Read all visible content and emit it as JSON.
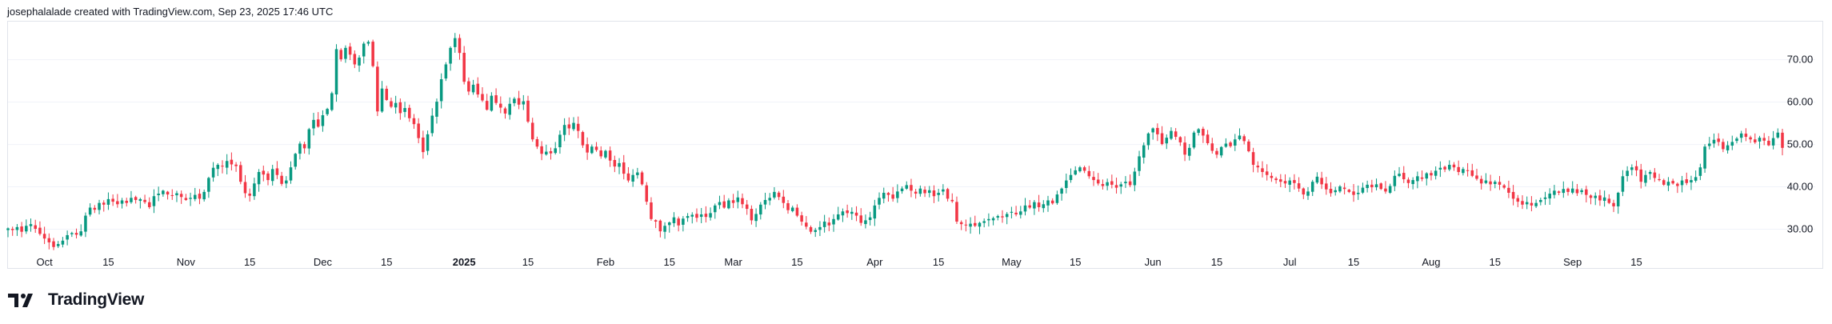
{
  "header": {
    "attribution": "josephalalade created with TradingView.com, Sep 23, 2025 17:46 UTC"
  },
  "footer": {
    "brand": "TradingView",
    "logo_icon": "tradingview-logo-icon"
  },
  "colors": {
    "up": "#089981",
    "down": "#f23645",
    "grid": "#f0f3fa",
    "border": "#e0e3eb",
    "text": "#131722"
  },
  "chart_data": {
    "type": "candlestick",
    "title": "",
    "xlabel": "",
    "ylabel": "",
    "ylim": [
      25,
      79
    ],
    "yticks": [
      "30.00",
      "40.00",
      "50.00",
      "60.00",
      "70.00"
    ],
    "xticks": [
      {
        "label": "Oct",
        "date": "2024-10-01"
      },
      {
        "label": "15",
        "date": "2024-10-15"
      },
      {
        "label": "Nov",
        "date": "2024-11-01"
      },
      {
        "label": "15",
        "date": "2024-11-15"
      },
      {
        "label": "Dec",
        "date": "2024-12-01"
      },
      {
        "label": "15",
        "date": "2024-12-15"
      },
      {
        "label": "2025",
        "date": "2025-01-01",
        "bold": true
      },
      {
        "label": "15",
        "date": "2025-01-15"
      },
      {
        "label": "Feb",
        "date": "2025-02-01"
      },
      {
        "label": "15",
        "date": "2025-02-15"
      },
      {
        "label": "Mar",
        "date": "2025-03-01"
      },
      {
        "label": "15",
        "date": "2025-03-15"
      },
      {
        "label": "Apr",
        "date": "2025-04-01"
      },
      {
        "label": "15",
        "date": "2025-04-15"
      },
      {
        "label": "May",
        "date": "2025-05-01"
      },
      {
        "label": "15",
        "date": "2025-05-15"
      },
      {
        "label": "Jun",
        "date": "2025-06-01"
      },
      {
        "label": "15",
        "date": "2025-06-15"
      },
      {
        "label": "Jul",
        "date": "2025-07-01"
      },
      {
        "label": "15",
        "date": "2025-07-15"
      },
      {
        "label": "Aug",
        "date": "2025-08-01"
      },
      {
        "label": "15",
        "date": "2025-08-15"
      },
      {
        "label": "Sep",
        "date": "2025-09-01"
      },
      {
        "label": "15",
        "date": "2025-09-15"
      }
    ],
    "x_start": "2024-09-23",
    "close": [
      30.2,
      29.8,
      30.5,
      29.4,
      30.8,
      31.2,
      30.1,
      28.9,
      27.8,
      26.9,
      25.8,
      26.5,
      27.3,
      28.6,
      29.1,
      28.7,
      29.5,
      33.2,
      35.1,
      34.6,
      36.2,
      35.8,
      37.1,
      36.5,
      35.9,
      36.8,
      36.2,
      37.4,
      36.9,
      37.1,
      36.4,
      35.2,
      37.8,
      38.4,
      39.1,
      38.2,
      37.9,
      38.5,
      37.6,
      36.9,
      37.4,
      38.1,
      37.2,
      38.8,
      42.1,
      44.5,
      45.2,
      44.8,
      46.1,
      45.3,
      44.9,
      41.2,
      38.5,
      37.9,
      40.8,
      43.5,
      42.9,
      41.6,
      44.2,
      42.8,
      40.7,
      41.5,
      44.6,
      47.8,
      50.2,
      49.1,
      53.6,
      55.8,
      54.2,
      56.9,
      58.4,
      62.1,
      72.5,
      70.1,
      72.8,
      71.2,
      68.9,
      70.5,
      73.8,
      74.2,
      68.5,
      57.8,
      63.2,
      60.5,
      58.9,
      59.8,
      57.4,
      58.6,
      56.2,
      54.8,
      51.5,
      48.2,
      52.4,
      56.8,
      60.1,
      65.4,
      68.9,
      72.8,
      75.1,
      71.6,
      64.8,
      62.5,
      64.1,
      61.8,
      60.4,
      58.2,
      61.5,
      59.8,
      58.7,
      57.3,
      59.6,
      60.8,
      59.4,
      60.2,
      55.4,
      51.2,
      49.5,
      47.8,
      48.3,
      47.9,
      49.1,
      52.3,
      54.6,
      53.8,
      55.1,
      53.2,
      49.8,
      48.1,
      49.5,
      48.7,
      47.2,
      48.5,
      46.2,
      44.8,
      45.6,
      43.1,
      41.5,
      42.8,
      43.4,
      40.6,
      36.5,
      32.4,
      31.8,
      29.5,
      30.8,
      31.6,
      32.8,
      30.9,
      32.5,
      33.1,
      33.4,
      32.7,
      33.5,
      32.9,
      33.8,
      35.6,
      36.4,
      35.1,
      36.8,
      36.2,
      37.5,
      35.9,
      34.8,
      32.1,
      33.6,
      35.8,
      36.9,
      37.4,
      38.8,
      37.6,
      36.2,
      34.5,
      35.1,
      33.2,
      31.8,
      30.6,
      29.4,
      29.8,
      30.5,
      31.8,
      30.9,
      32.4,
      33.5,
      34.2,
      33.8,
      34.1,
      33.2,
      31.5,
      32.1,
      32.8,
      35.6,
      37.4,
      38.6,
      38.1,
      37.2,
      38.9,
      39.6,
      40.4,
      39.1,
      38.4,
      39.6,
      38.5,
      39.2,
      37.8,
      38.6,
      39.4,
      37.2,
      36.6,
      31.8,
      31.2,
      30.9,
      31.3,
      30.8,
      31.5,
      31.9,
      32.4,
      32.6,
      33.1,
      32.8,
      33.6,
      34.1,
      33.5,
      34.2,
      35.6,
      35.1,
      36.4,
      35.2,
      35.9,
      36.8,
      36.1,
      38.2,
      39.6,
      41.5,
      42.8,
      43.9,
      44.6,
      43.8,
      42.5,
      41.6,
      40.8,
      40.2,
      41.1,
      40.5,
      39.8,
      40.6,
      41.2,
      40.4,
      43.6,
      47.2,
      49.8,
      52.6,
      53.8,
      52.4,
      50.1,
      51.6,
      53.2,
      51.8,
      50.5,
      47.6,
      49.2,
      52.8,
      53.6,
      52.1,
      50.3,
      48.5,
      47.6,
      49.4,
      50.2,
      49.6,
      51.2,
      52.1,
      50.8,
      48.4,
      45.2,
      44.6,
      43.5,
      42.8,
      42.1,
      41.6,
      41.2,
      40.8,
      41.5,
      40.9,
      39.6,
      38.2,
      38.9,
      41.2,
      42.4,
      40.6,
      39.4,
      38.5,
      39.2,
      40.1,
      39.5,
      38.8,
      38.1,
      38.6,
      39.8,
      40.5,
      39.9,
      40.6,
      39.5,
      38.9,
      40.2,
      42.6,
      43.1,
      41.8,
      40.9,
      41.6,
      42.5,
      41.9,
      43.2,
      42.7,
      43.8,
      44.5,
      44.1,
      45.2,
      44.6,
      43.5,
      44.2,
      43.8,
      42.6,
      41.9,
      40.8,
      41.5,
      40.6,
      41.2,
      40.5,
      39.8,
      38.6,
      37.2,
      36.5,
      35.8,
      36.4,
      35.6,
      36.2,
      36.9,
      37.5,
      38.4,
      39.1,
      38.6,
      39.5,
      38.8,
      39.6,
      38.5,
      39.2,
      38.1,
      37.4,
      37.9,
      36.8,
      37.5,
      36.2,
      35.4,
      38.6,
      42.5,
      43.8,
      44.6,
      43.9,
      41.2,
      42.8,
      43.5,
      42.1,
      41.6,
      40.5,
      41.2,
      40.8,
      40.2,
      41.5,
      40.9,
      41.6,
      42.3,
      44.6,
      49.5,
      50.2,
      51.1,
      50.6,
      48.9,
      49.8,
      50.6,
      51.4,
      52.6,
      51.8,
      51.2,
      50.5,
      51.6,
      50.9,
      49.8,
      51.5,
      52.8,
      49.2
    ]
  }
}
